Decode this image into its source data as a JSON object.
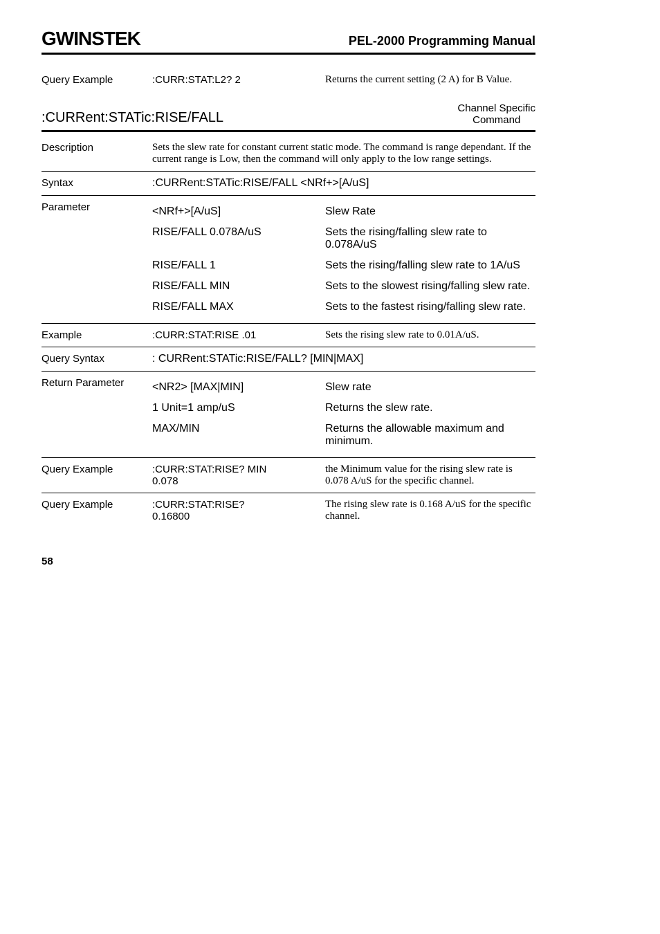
{
  "header": {
    "logo": "GWINSTEK",
    "title": "PEL-2000 Programming Manual"
  },
  "queryExample1": {
    "label": "Query Example",
    "cmd": ":CURR:STAT:L2? 2",
    "desc": "Returns the current setting (2 A) for B Value."
  },
  "section": {
    "title": ":CURRent:STATic:RISE/FALL",
    "right1": "Channel Specific",
    "right2": "Command"
  },
  "description": {
    "label": "Description",
    "text": "Sets the slew rate for constant current static mode. The command is range dependant. If the current range is Low, then the command will only apply to the low range settings."
  },
  "syntax": {
    "label": "Syntax",
    "text": ":CURRent:STATic:RISE/FALL <NRf+>[A/uS]"
  },
  "parameter": {
    "label": "Parameter",
    "rows": [
      {
        "l": "<NRf+>[A/uS]",
        "r": "Slew Rate"
      },
      {
        "l": "RISE/FALL 0.078A/uS",
        "r": "Sets the rising/falling slew rate to 0.078A/uS"
      },
      {
        "l": "RISE/FALL 1",
        "r": "Sets the rising/falling slew rate to 1A/uS"
      },
      {
        "l": "RISE/FALL MIN",
        "r": "Sets to the slowest rising/falling slew rate."
      },
      {
        "l": "RISE/FALL MAX",
        "r": "Sets to the fastest rising/falling slew rate."
      }
    ]
  },
  "example": {
    "label": "Example",
    "cmd": ":CURR:STAT:RISE .01",
    "desc": "Sets the rising slew rate to 0.01A/uS."
  },
  "querySyntax": {
    "label": "Query Syntax",
    "text": ": CURRent:STATic:RISE/FALL? [MIN|MAX]"
  },
  "returnParam": {
    "label": "Return Parameter",
    "rows": [
      {
        "l": "<NR2> [MAX|MIN]",
        "r": "Slew rate"
      },
      {
        "l": "1 Unit=1 amp/uS",
        "r": "Returns the slew rate."
      },
      {
        "l": "MAX/MIN",
        "r": "Returns the allowable maximum and minimum."
      }
    ]
  },
  "queryExample2": {
    "label": "Query Example",
    "cmd": ":CURR:STAT:RISE? MIN",
    "cmd2": "0.078",
    "desc": "the Minimum value for the rising slew rate is 0.078 A/uS for the specific channel."
  },
  "queryExample3": {
    "label": "Query Example",
    "cmd": ":CURR:STAT:RISE?",
    "cmd2": "0.16800",
    "desc": "The rising slew rate is 0.168 A/uS for the specific channel."
  },
  "pageNum": "58"
}
